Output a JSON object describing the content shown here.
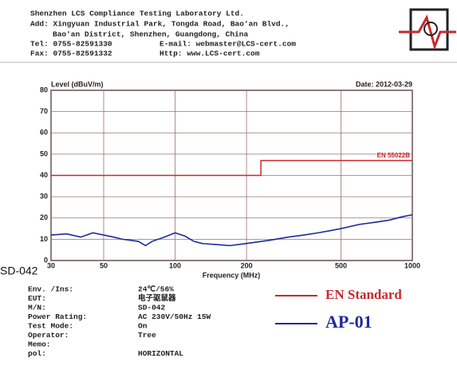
{
  "header": {
    "company": "Shenzhen LCS Compliance Testing Laboratory Ltd.",
    "address1": "Add: Xingyuan Industrial Park, Tongda Road, Bao'an Blvd.,",
    "address2": "Bao'an District, Shenzhen, Guangdong, China",
    "tel": "Tel: 0755-82591330",
    "email": "E-mail: webmaster@LCS-cert.com",
    "fax": "Fax: 0755-82591332",
    "http": "Http: www.LCS-cert.com"
  },
  "chart_data": {
    "type": "line",
    "ylabel": "Level (dBuV/m)",
    "date": "Date: 2012-03-29",
    "xlabel": "Frequency (MHz)",
    "xscale": "log",
    "xlim": [
      30,
      1000
    ],
    "ylim": [
      0,
      80
    ],
    "xticks": [
      30,
      50,
      100,
      200,
      500,
      1000
    ],
    "yticks": [
      0,
      10,
      20,
      30,
      40,
      50,
      60,
      70,
      80
    ],
    "grid": true,
    "annotations": [
      "EN 55022B"
    ],
    "series": [
      {
        "name": "EN Standard",
        "color": "#c8282d",
        "x": [
          30,
          230,
          230,
          1000
        ],
        "values": [
          40,
          40,
          47,
          47
        ]
      },
      {
        "name": "AP-01",
        "color": "#1e2a9a",
        "x": [
          30,
          35,
          40,
          45,
          50,
          55,
          60,
          65,
          70,
          75,
          80,
          90,
          100,
          110,
          120,
          130,
          150,
          170,
          200,
          250,
          300,
          350,
          400,
          450,
          500,
          600,
          700,
          800,
          900,
          1000
        ],
        "values": [
          12,
          12.5,
          11,
          13,
          12,
          11,
          10,
          9.5,
          9,
          7,
          9,
          11,
          13,
          11.5,
          9,
          8,
          7.5,
          7,
          8,
          9.5,
          11,
          12,
          13,
          14,
          15,
          17,
          18,
          19,
          20.5,
          21.5
        ]
      }
    ]
  },
  "stray": "SD-042",
  "info": [
    [
      "Env. /Ins:",
      "24℃/56%"
    ],
    [
      "EUT:",
      "电子驱鼠器"
    ],
    [
      "M/N:",
      "SD-042"
    ],
    [
      "Power Rating:",
      "AC 230V/50Hz 15W"
    ],
    [
      "Test Mode:",
      "On"
    ],
    [
      "Operator:",
      "Tree"
    ],
    [
      "Memo:"
    ],
    [
      "pol:",
      "HORIZONTAL"
    ]
  ]
}
